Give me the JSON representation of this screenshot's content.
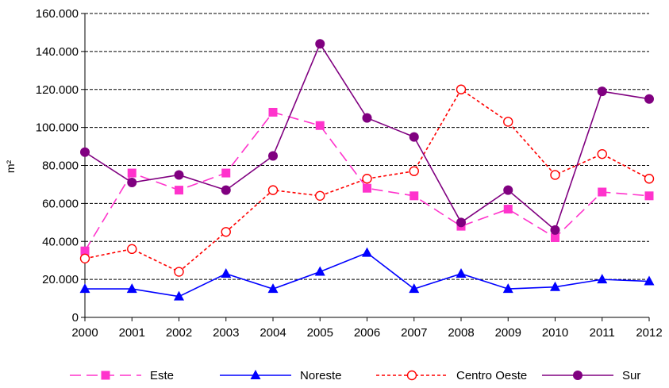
{
  "chart_data": {
    "type": "line",
    "title": "",
    "xlabel": "",
    "ylabel": "m²",
    "x": [
      "2000",
      "2001",
      "2002",
      "2003",
      "2004",
      "2005",
      "2006",
      "2007",
      "2008",
      "2009",
      "2010",
      "2011",
      "2012"
    ],
    "ylim": [
      0,
      160000
    ],
    "yticks": [
      0,
      20000,
      40000,
      60000,
      80000,
      100000,
      120000,
      140000,
      160000
    ],
    "ytick_labels": [
      "0",
      "20.000",
      "40.000",
      "60.000",
      "80.000",
      "100.000",
      "120.000",
      "140.000",
      "160.000"
    ],
    "grid": "horizontal dashed",
    "legend_position": "bottom",
    "series": [
      {
        "name": "Este",
        "color": "#ff33cc",
        "line": "dashed",
        "marker": "square",
        "values": [
          35000,
          76000,
          67000,
          76000,
          108000,
          101000,
          68000,
          64000,
          48000,
          57000,
          42000,
          66000,
          64000
        ]
      },
      {
        "name": "Noreste",
        "color": "#0000ff",
        "line": "solid",
        "marker": "triangle",
        "values": [
          15000,
          15000,
          11000,
          23000,
          15000,
          24000,
          34000,
          15000,
          23000,
          15000,
          16000,
          20000,
          19000
        ]
      },
      {
        "name": "Centro Oeste",
        "color": "#ff0000",
        "line": "dotted",
        "marker": "open-circle",
        "values": [
          31000,
          36000,
          24000,
          45000,
          67000,
          64000,
          73000,
          77000,
          120000,
          103000,
          75000,
          86000,
          73000
        ]
      },
      {
        "name": "Sur",
        "color": "#800080",
        "line": "solid",
        "marker": "circle",
        "values": [
          87000,
          71000,
          75000,
          67000,
          85000,
          144000,
          105000,
          95000,
          50000,
          67000,
          46000,
          119000,
          115000
        ]
      }
    ]
  }
}
